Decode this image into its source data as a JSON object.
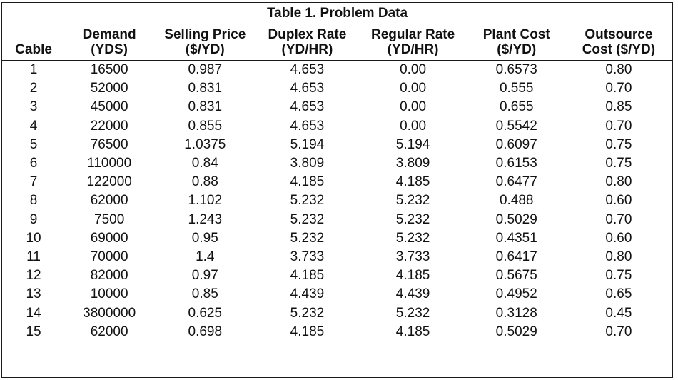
{
  "table": {
    "title": "Table 1.  Problem Data",
    "headers": [
      {
        "line1": "",
        "line2": "Cable"
      },
      {
        "line1": "Demand",
        "line2": "(YDS)"
      },
      {
        "line1": "Selling Price",
        "line2": "($/YD)"
      },
      {
        "line1": "Duplex Rate",
        "line2": "(YD/HR)"
      },
      {
        "line1": "Regular Rate",
        "line2": "(YD/HR)"
      },
      {
        "line1": "Plant Cost",
        "line2": "($/YD)"
      },
      {
        "line1": "Outsource",
        "line2": "Cost ($/YD)"
      }
    ],
    "rows": [
      [
        "1",
        "16500",
        "0.987",
        "4.653",
        "0.00",
        "0.6573",
        "0.80"
      ],
      [
        "2",
        "52000",
        "0.831",
        "4.653",
        "0.00",
        "0.555",
        "0.70"
      ],
      [
        "3",
        "45000",
        "0.831",
        "4.653",
        "0.00",
        "0.655",
        "0.85"
      ],
      [
        "4",
        "22000",
        "0.855",
        "4.653",
        "0.00",
        "0.5542",
        "0.70"
      ],
      [
        "5",
        "76500",
        "1.0375",
        "5.194",
        "5.194",
        "0.6097",
        "0.75"
      ],
      [
        "6",
        "110000",
        "0.84",
        "3.809",
        "3.809",
        "0.6153",
        "0.75"
      ],
      [
        "7",
        "122000",
        "0.88",
        "4.185",
        "4.185",
        "0.6477",
        "0.80"
      ],
      [
        "8",
        "62000",
        "1.102",
        "5.232",
        "5.232",
        "0.488",
        "0.60"
      ],
      [
        "9",
        "7500",
        "1.243",
        "5.232",
        "5.232",
        "0.5029",
        "0.70"
      ],
      [
        "10",
        "69000",
        "0.95",
        "5.232",
        "5.232",
        "0.4351",
        "0.60"
      ],
      [
        "11",
        "70000",
        "1.4",
        "3.733",
        "3.733",
        "0.6417",
        "0.80"
      ],
      [
        "12",
        "82000",
        "0.97",
        "4.185",
        "4.185",
        "0.5675",
        "0.75"
      ],
      [
        "13",
        "10000",
        "0.85",
        "4.439",
        "4.439",
        "0.4952",
        "0.65"
      ],
      [
        "14",
        "3800000",
        "0.625",
        "5.232",
        "5.232",
        "0.3128",
        "0.45"
      ],
      [
        "15",
        "62000",
        "0.698",
        "4.185",
        "4.185",
        "0.5029",
        "0.70"
      ]
    ]
  }
}
